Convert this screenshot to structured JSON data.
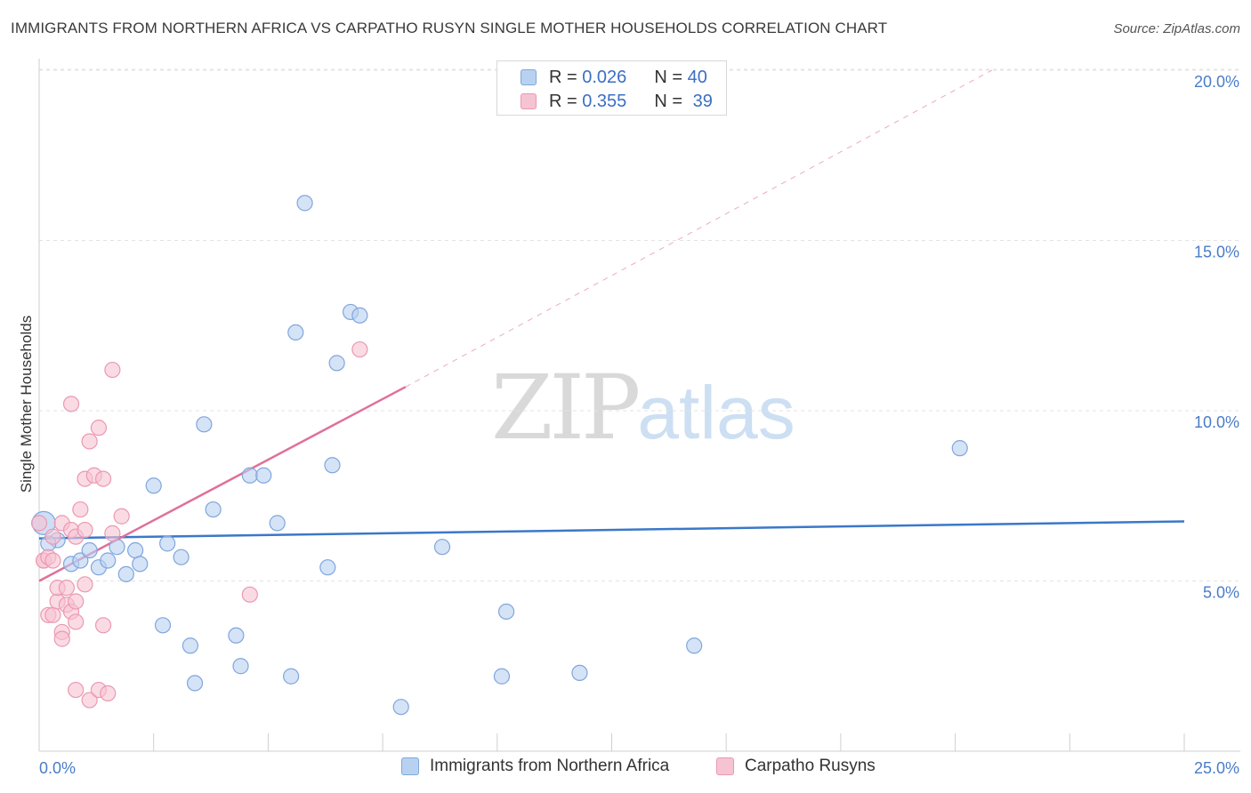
{
  "header": {
    "title": "IMMIGRANTS FROM NORTHERN AFRICA VS CARPATHO RUSYN SINGLE MOTHER HOUSEHOLDS CORRELATION CHART",
    "source": "Source: ZipAtlas.com"
  },
  "watermark": {
    "zip": "ZIP",
    "atlas": "atlas"
  },
  "legend": {
    "blue": {
      "r_label": "R =",
      "r_value": "0.026",
      "n_label": "N =",
      "n_value": "40"
    },
    "pink": {
      "r_label": "R =",
      "r_value": "0.355",
      "n_label": "N =",
      "n_value": "39"
    }
  },
  "colors": {
    "blue_fill": "#b9d1f1",
    "blue_stroke": "#7fa6dc",
    "blue_line": "#3a78c9",
    "pink_fill": "#f6c3d2",
    "pink_stroke": "#eb98b2",
    "pink_line": "#e0709b",
    "grid": "#e3e3e3",
    "axis_text": "#4a7cc9"
  },
  "chart_data": {
    "type": "scatter",
    "title": "IMMIGRANTS FROM NORTHERN AFRICA VS CARPATHO RUSYN SINGLE MOTHER HOUSEHOLDS CORRELATION CHART",
    "xlabel": "",
    "ylabel": "Single Mother Households",
    "xlim": [
      0,
      25
    ],
    "ylim": [
      0,
      20.5
    ],
    "x_tick_labels": [
      "0.0%",
      "25.0%"
    ],
    "y_ticks": [
      5,
      10,
      15,
      20
    ],
    "y_tick_labels": [
      "5.0%",
      "10.0%",
      "15.0%",
      "20.0%"
    ],
    "legend_position": "bottom",
    "series": [
      {
        "name": "Immigrants from Northern Africa",
        "color": "blue",
        "points": [
          [
            0.1,
            6.7
          ],
          [
            0.4,
            6.2
          ],
          [
            0.7,
            5.5
          ],
          [
            0.9,
            5.6
          ],
          [
            1.1,
            5.9
          ],
          [
            1.3,
            5.4
          ],
          [
            1.5,
            5.6
          ],
          [
            1.7,
            6.0
          ],
          [
            1.9,
            5.2
          ],
          [
            2.1,
            5.9
          ],
          [
            2.2,
            5.5
          ],
          [
            2.5,
            7.8
          ],
          [
            2.7,
            3.7
          ],
          [
            2.8,
            6.1
          ],
          [
            3.1,
            5.7
          ],
          [
            3.3,
            3.1
          ],
          [
            3.4,
            2.0
          ],
          [
            3.6,
            9.6
          ],
          [
            3.8,
            7.1
          ],
          [
            4.3,
            3.4
          ],
          [
            4.4,
            2.5
          ],
          [
            4.6,
            8.1
          ],
          [
            4.9,
            8.1
          ],
          [
            5.2,
            6.7
          ],
          [
            5.5,
            2.2
          ],
          [
            5.6,
            12.3
          ],
          [
            5.8,
            16.1
          ],
          [
            6.3,
            5.4
          ],
          [
            6.4,
            8.4
          ],
          [
            6.5,
            11.4
          ],
          [
            6.8,
            12.9
          ],
          [
            7.0,
            12.8
          ],
          [
            7.9,
            1.3
          ],
          [
            8.8,
            6.0
          ],
          [
            10.2,
            4.1
          ],
          [
            10.1,
            2.2
          ],
          [
            11.8,
            2.3
          ],
          [
            14.3,
            3.1
          ],
          [
            20.1,
            8.9
          ],
          [
            0.2,
            6.1
          ]
        ]
      },
      {
        "name": "Carpatho Rusyns",
        "color": "pink",
        "points": [
          [
            0.0,
            6.7
          ],
          [
            0.1,
            5.6
          ],
          [
            0.1,
            5.6
          ],
          [
            0.2,
            5.7
          ],
          [
            0.2,
            4.0
          ],
          [
            0.3,
            4.0
          ],
          [
            0.3,
            5.6
          ],
          [
            0.3,
            6.3
          ],
          [
            0.4,
            4.4
          ],
          [
            0.4,
            4.8
          ],
          [
            0.5,
            3.5
          ],
          [
            0.5,
            3.3
          ],
          [
            0.5,
            6.7
          ],
          [
            0.6,
            4.8
          ],
          [
            0.6,
            4.3
          ],
          [
            0.7,
            6.5
          ],
          [
            0.7,
            4.1
          ],
          [
            0.7,
            10.2
          ],
          [
            0.8,
            4.4
          ],
          [
            0.8,
            3.8
          ],
          [
            0.8,
            6.3
          ],
          [
            0.8,
            1.8
          ],
          [
            0.9,
            7.1
          ],
          [
            1.0,
            4.9
          ],
          [
            1.0,
            6.5
          ],
          [
            1.0,
            8.0
          ],
          [
            1.1,
            9.1
          ],
          [
            1.1,
            1.5
          ],
          [
            1.2,
            8.1
          ],
          [
            1.3,
            1.8
          ],
          [
            1.3,
            9.5
          ],
          [
            1.4,
            3.7
          ],
          [
            1.4,
            8.0
          ],
          [
            1.5,
            1.7
          ],
          [
            1.6,
            11.2
          ],
          [
            1.6,
            6.4
          ],
          [
            1.8,
            6.9
          ],
          [
            4.6,
            4.6
          ],
          [
            7.0,
            11.8
          ]
        ]
      }
    ],
    "trend_lines": [
      {
        "series": "Immigrants from Northern Africa",
        "style": "solid",
        "from": [
          0,
          6.25
        ],
        "to": [
          25,
          6.75
        ]
      },
      {
        "series": "Carpatho Rusyns",
        "style": "solid",
        "from": [
          0,
          5.0
        ],
        "to": [
          8.0,
          10.7
        ]
      },
      {
        "series": "Carpatho Rusyns",
        "style": "dashed",
        "from": [
          8.0,
          10.7
        ],
        "to": [
          20.8,
          20.0
        ]
      }
    ]
  },
  "bottom_legend": {
    "items": [
      {
        "label": "Immigrants from Northern Africa"
      },
      {
        "label": "Carpatho Rusyns"
      }
    ]
  }
}
